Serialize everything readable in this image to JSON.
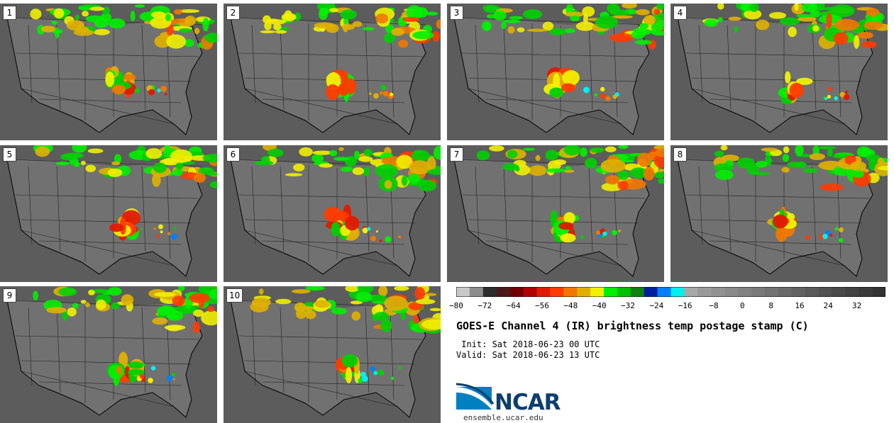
{
  "panels": [
    {
      "label": "1"
    },
    {
      "label": "2"
    },
    {
      "label": "3"
    },
    {
      "label": "4"
    },
    {
      "label": "5"
    },
    {
      "label": "6"
    },
    {
      "label": "7"
    },
    {
      "label": "8"
    },
    {
      "label": "9"
    },
    {
      "label": "10"
    }
  ],
  "colorbar": {
    "colors": [
      "#c8c8c8",
      "#8c8c8c",
      "#2d2d2d",
      "#4a1a1a",
      "#700000",
      "#b00000",
      "#e01a00",
      "#ff3b00",
      "#f07800",
      "#e0b000",
      "#f0f000",
      "#00f000",
      "#00c000",
      "#108010",
      "#0020a0",
      "#0080ff",
      "#00f0f0",
      "#a8a8a8",
      "#9a9a9a",
      "#929292",
      "#8a8a8a",
      "#828282",
      "#7a7a7a",
      "#727272",
      "#6a6a6a",
      "#626262",
      "#5a5a5a",
      "#525252",
      "#4a4a4a",
      "#424242",
      "#3a3a3a",
      "#323232"
    ],
    "ticks": [
      "−80",
      "−72",
      "−64",
      "−56",
      "−48",
      "−40",
      "−32",
      "−24",
      "−16",
      "−8",
      "0",
      "8",
      "16",
      "24",
      "32"
    ]
  },
  "legend": {
    "title": "GOES-E Channel 4 (IR) brightness temp postage stamp (C)",
    "init": " Init: Sat 2018-06-23 00 UTC",
    "valid": "Valid: Sat 2018-06-23 13 UTC"
  },
  "logo": {
    "text": "NCAR",
    "site": "ensemble.ucar.edu",
    "brand_color": "#0d3e6e",
    "accent_color": "#0080c0"
  }
}
